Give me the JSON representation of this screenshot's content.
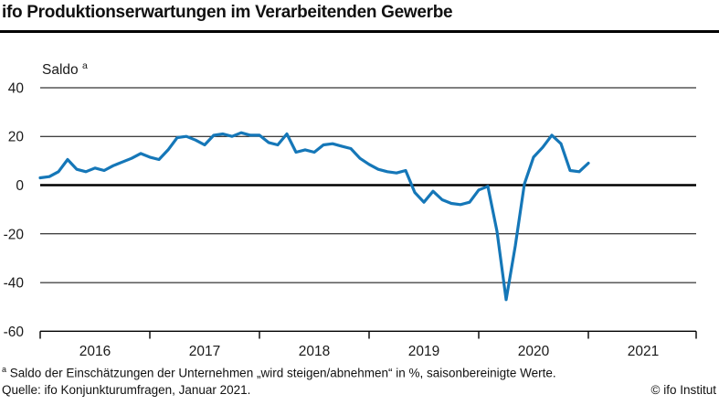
{
  "header": {
    "title": "ifo Produktionserwartungen im Verarbeitenden Gewerbe"
  },
  "chart_data": {
    "type": "line",
    "title": "ifo Produktionserwartungen im Verarbeitenden Gewerbe",
    "ylabel": "Saldo",
    "ylabel_superscript": "a",
    "xlabel": "",
    "x_range": [
      "2016-01",
      "2021-01"
    ],
    "frequency": "monthly",
    "x_tick_labels": [
      "2016",
      "2017",
      "2018",
      "2019",
      "2020",
      "2021"
    ],
    "y_ticks": [
      40,
      20,
      0,
      -20,
      -40,
      -60
    ],
    "y_tick_labels": [
      "40",
      "20",
      "0",
      "-20",
      "-40",
      "-60"
    ],
    "ylim": [
      -60,
      40
    ],
    "grid": "horizontal",
    "legend": "none",
    "line_color": "#1577b8",
    "series": [
      {
        "name": "Produktionserwartungen, Saldo, saisonbereinigt",
        "start": "2016-01",
        "values": [
          3,
          3.5,
          5.5,
          10.5,
          6.5,
          5.5,
          7,
          6,
          8,
          9.5,
          11,
          13,
          11.5,
          10.5,
          14.5,
          19.5,
          20,
          18.5,
          16.5,
          20.5,
          21,
          20,
          21.5,
          20.5,
          20.5,
          17.5,
          16.5,
          21,
          13.5,
          14.5,
          13.5,
          16.5,
          17,
          16,
          15,
          11,
          8.5,
          6.5,
          5.5,
          5,
          6,
          -3,
          -7,
          -2.5,
          -6,
          -7.5,
          -8,
          -7,
          -2,
          -0.5,
          -19,
          -47,
          -25,
          0.5,
          11.5,
          15.5,
          20.5,
          17,
          6,
          5.5,
          9
        ]
      }
    ]
  },
  "footer": {
    "footnote_superscript": "a",
    "footnote_text": "Saldo der Einschätzungen der Unternehmen „wird steigen/abnehmen“ in %, saisonbereinigte Werte.",
    "source": "Quelle: ifo Konjunkturumfragen, Januar 2021.",
    "copyright": "© ifo Institut"
  }
}
